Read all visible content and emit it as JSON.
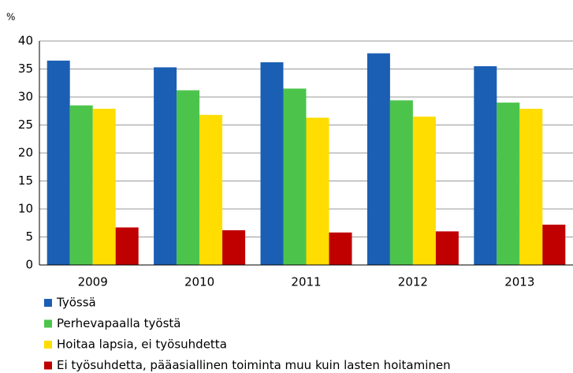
{
  "chart_data": {
    "type": "bar",
    "y_label": "%",
    "categories": [
      "2009",
      "2010",
      "2011",
      "2012",
      "2013"
    ],
    "series": [
      {
        "name": "Työssä",
        "color": "#1b5fb4",
        "values": [
          36.5,
          35.3,
          36.2,
          37.8,
          35.5
        ]
      },
      {
        "name": "Perhevapaalla työstä",
        "color": "#4cc44c",
        "values": [
          28.5,
          31.2,
          31.5,
          29.4,
          29.0
        ]
      },
      {
        "name": "Hoitaa lapsia, ei työsuhdetta",
        "color": "#ffdd00",
        "values": [
          27.9,
          26.8,
          26.3,
          26.5,
          27.9
        ]
      },
      {
        "name": "Ei työsuhdetta, pääasiallinen toiminta muu kuin lasten hoitaminen",
        "color": "#c00000",
        "values": [
          6.7,
          6.2,
          5.8,
          6.0,
          7.2
        ]
      }
    ],
    "ylim": [
      0,
      40
    ],
    "yticks": [
      0,
      5,
      10,
      15,
      20,
      25,
      30,
      35,
      40
    ],
    "grid": true,
    "legend": "bottom"
  }
}
